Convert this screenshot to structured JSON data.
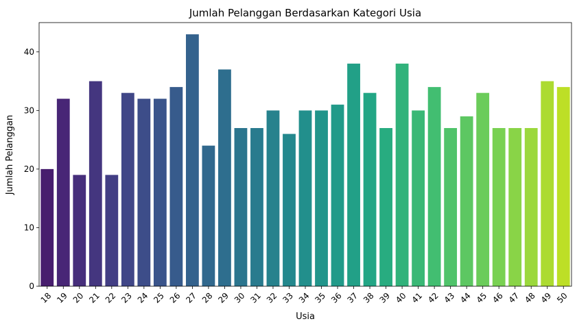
{
  "chart_data": {
    "type": "bar",
    "title": "Jumlah Pelanggan Berdasarkan Kategori Usia",
    "xlabel": "Usia",
    "ylabel": "Jumlah Pelanggan",
    "categories": [
      "18",
      "19",
      "20",
      "21",
      "22",
      "23",
      "24",
      "25",
      "26",
      "27",
      "28",
      "29",
      "30",
      "31",
      "32",
      "33",
      "34",
      "35",
      "36",
      "37",
      "38",
      "39",
      "40",
      "41",
      "42",
      "43",
      "44",
      "45",
      "46",
      "47",
      "48",
      "49",
      "50"
    ],
    "values": [
      20,
      32,
      19,
      35,
      19,
      33,
      32,
      32,
      34,
      43,
      24,
      37,
      27,
      27,
      30,
      26,
      30,
      30,
      31,
      38,
      33,
      27,
      38,
      30,
      34,
      27,
      29,
      33,
      27,
      27,
      27,
      35,
      34
    ],
    "ylim": [
      0,
      45
    ],
    "yticks": [
      0,
      10,
      20,
      30,
      40
    ],
    "grid": false,
    "colormap": "viridis"
  }
}
